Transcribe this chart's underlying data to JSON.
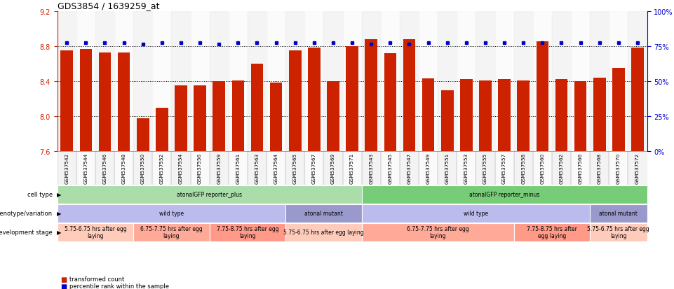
{
  "title": "GDS3854 / 1639259_at",
  "samples": [
    "GSM537542",
    "GSM537544",
    "GSM537546",
    "GSM537548",
    "GSM537550",
    "GSM537552",
    "GSM537554",
    "GSM537556",
    "GSM537559",
    "GSM537561",
    "GSM537563",
    "GSM537564",
    "GSM537565",
    "GSM537567",
    "GSM537569",
    "GSM537571",
    "GSM537543",
    "GSM537545",
    "GSM537547",
    "GSM537549",
    "GSM537551",
    "GSM537553",
    "GSM537555",
    "GSM537557",
    "GSM537558",
    "GSM537560",
    "GSM537562",
    "GSM537566",
    "GSM537568",
    "GSM537570",
    "GSM537572"
  ],
  "bar_values": [
    8.75,
    8.77,
    8.73,
    8.73,
    7.98,
    8.1,
    8.35,
    8.35,
    8.4,
    8.41,
    8.6,
    8.38,
    8.75,
    8.78,
    8.4,
    8.8,
    8.88,
    8.72,
    8.88,
    8.43,
    8.3,
    8.42,
    8.41,
    8.42,
    8.41,
    8.85,
    8.42,
    8.4,
    8.44,
    8.55,
    8.78
  ],
  "percentile_y": [
    8.835,
    8.835,
    8.835,
    8.835,
    8.82,
    8.835,
    8.835,
    8.835,
    8.82,
    8.835,
    8.835,
    8.835,
    8.835,
    8.835,
    8.835,
    8.835,
    8.82,
    8.835,
    8.82,
    8.835,
    8.835,
    8.835,
    8.835,
    8.835,
    8.835,
    8.835,
    8.835,
    8.835,
    8.835,
    8.835,
    8.835
  ],
  "ymin": 7.6,
  "ymax": 9.2,
  "yticks": [
    7.6,
    8.0,
    8.4,
    8.8,
    9.2
  ],
  "yticks_right": [
    0,
    25,
    50,
    75,
    100
  ],
  "gridlines": [
    8.0,
    8.4,
    8.8
  ],
  "bar_color": "#CC2200",
  "percentile_color": "#0000CC",
  "cell_type_segs": [
    {
      "s": 0,
      "e": 15,
      "label": "atonalGFP reporter_plus",
      "color": "#AADDAA"
    },
    {
      "s": 16,
      "e": 30,
      "label": "atonalGFP reporter_minus",
      "color": "#77CC77"
    }
  ],
  "geno_segs": [
    {
      "s": 0,
      "e": 11,
      "label": "wild type",
      "color": "#BBBBEE"
    },
    {
      "s": 12,
      "e": 15,
      "label": "atonal mutant",
      "color": "#9999CC"
    },
    {
      "s": 16,
      "e": 27,
      "label": "wild type",
      "color": "#BBBBEE"
    },
    {
      "s": 28,
      "e": 30,
      "label": "atonal mutant",
      "color": "#9999CC"
    }
  ],
  "dev_segs": [
    {
      "s": 0,
      "e": 3,
      "label": "5.75-6.75 hrs after egg\nlaying",
      "color": "#FFCCBB"
    },
    {
      "s": 4,
      "e": 7,
      "label": "6.75-7.75 hrs after egg\nlaying",
      "color": "#FFAA99"
    },
    {
      "s": 8,
      "e": 11,
      "label": "7.75-8.75 hrs after egg\nlaying",
      "color": "#FF9988"
    },
    {
      "s": 12,
      "e": 15,
      "label": "5.75-6.75 hrs after egg laying",
      "color": "#FFCCBB"
    },
    {
      "s": 16,
      "e": 23,
      "label": "6.75-7.75 hrs after egg\nlaying",
      "color": "#FFAA99"
    },
    {
      "s": 24,
      "e": 27,
      "label": "7.75-8.75 hrs after\negg laying",
      "color": "#FF9988"
    },
    {
      "s": 28,
      "e": 30,
      "label": "5.75-6.75 hrs after egg\nlaying",
      "color": "#FFCCBB"
    }
  ],
  "row_labels": [
    "cell type",
    "genotype/variation",
    "development stage"
  ],
  "legend_labels": [
    "transformed count",
    "percentile rank within the sample"
  ],
  "legend_colors": [
    "#CC2200",
    "#0000CC"
  ]
}
